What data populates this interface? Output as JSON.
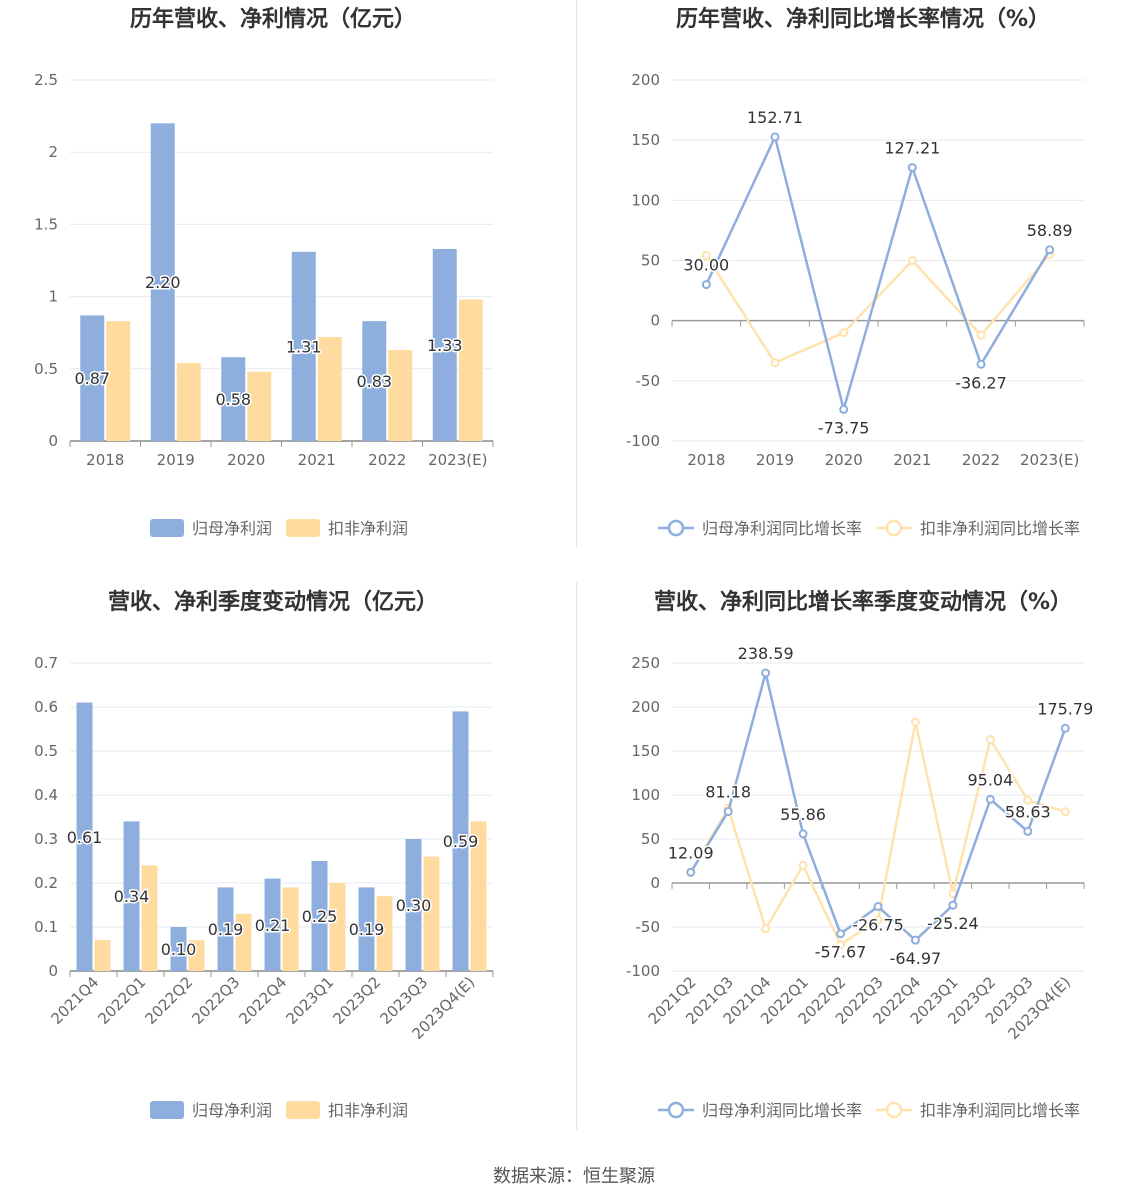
{
  "source_label": "数据来源：恒生聚源",
  "colors": {
    "blue": "#8eaedd",
    "orange": "#ffdba0",
    "blue_line": "#8eaedd",
    "orange_line": "#ffe2ad"
  },
  "chart_data": [
    {
      "type": "bar",
      "title": "历年营收、净利情况（亿元）",
      "categories": [
        "2018",
        "2019",
        "2020",
        "2021",
        "2022",
        "2023(E)"
      ],
      "ylim": [
        0,
        2.5
      ],
      "yticks": [
        "0",
        "0.5",
        "1",
        "1.5",
        "2",
        "2.5"
      ],
      "yticks_values": [
        0,
        0.5,
        1,
        1.5,
        2,
        2.5
      ],
      "series": [
        {
          "name": "归母净利润",
          "values": [
            0.87,
            2.2,
            0.58,
            1.31,
            0.83,
            1.33
          ],
          "labels": [
            "0.87",
            "2.20",
            "0.58",
            "1.31",
            "0.83",
            "1.33"
          ]
        },
        {
          "name": "扣非净利润",
          "values": [
            0.83,
            0.54,
            0.48,
            0.72,
            0.63,
            0.98
          ]
        }
      ],
      "legend": "bottom",
      "grid": true
    },
    {
      "type": "line",
      "title": "历年营收、净利同比增长率情况（%）",
      "categories": [
        "2018",
        "2019",
        "2020",
        "2021",
        "2022",
        "2023(E)"
      ],
      "ylim": [
        -100,
        200
      ],
      "yticks": [
        "-100",
        "-50",
        "0",
        "50",
        "100",
        "150",
        "200"
      ],
      "yticks_values": [
        -100,
        -50,
        0,
        50,
        100,
        150,
        200
      ],
      "series": [
        {
          "name": "归母净利润同比增长率",
          "values": [
            30.0,
            152.71,
            -73.75,
            127.21,
            -36.27,
            58.89
          ],
          "labels": [
            "30.00",
            "152.71",
            "-73.75",
            "127.21",
            "-36.27",
            "58.89"
          ]
        },
        {
          "name": "扣非净利润同比增长率",
          "values": [
            54,
            -35,
            -10,
            50,
            -12,
            55
          ]
        }
      ],
      "legend": "bottom",
      "grid": true
    },
    {
      "type": "bar",
      "title": "营收、净利季度变动情况（亿元）",
      "categories": [
        "2021Q4",
        "2022Q1",
        "2022Q2",
        "2022Q3",
        "2022Q4",
        "2023Q1",
        "2023Q2",
        "2023Q3",
        "2023Q4(E)"
      ],
      "ylim": [
        0,
        0.7
      ],
      "yticks": [
        "0",
        "0.1",
        "0.2",
        "0.3",
        "0.4",
        "0.5",
        "0.6",
        "0.7"
      ],
      "yticks_values": [
        0,
        0.1,
        0.2,
        0.3,
        0.4,
        0.5,
        0.6,
        0.7
      ],
      "series": [
        {
          "name": "归母净利润",
          "values": [
            0.61,
            0.34,
            0.1,
            0.19,
            0.21,
            0.25,
            0.19,
            0.3,
            0.59
          ],
          "labels": [
            "0.61",
            "0.34",
            "0.10",
            "0.19",
            "0.21",
            "0.25",
            "0.19",
            "0.30",
            "0.59"
          ]
        },
        {
          "name": "扣非净利润",
          "values": [
            0.07,
            0.24,
            0.07,
            0.13,
            0.19,
            0.2,
            0.17,
            0.26,
            0.34
          ]
        }
      ],
      "legend": "bottom",
      "grid": true
    },
    {
      "type": "line",
      "title": "营收、净利同比增长率季度变动情况（%）",
      "categories": [
        "2021Q2",
        "2021Q3",
        "2021Q4",
        "2022Q1",
        "2022Q2",
        "2022Q3",
        "2022Q4",
        "2023Q1",
        "2023Q2",
        "2023Q3",
        "2023Q4(E)"
      ],
      "ylim": [
        -100,
        250
      ],
      "yticks": [
        "-100",
        "-50",
        "0",
        "50",
        "100",
        "150",
        "200",
        "250"
      ],
      "yticks_values": [
        -100,
        -50,
        0,
        50,
        100,
        150,
        200,
        250
      ],
      "series": [
        {
          "name": "归母净利润同比增长率",
          "values": [
            12.09,
            81.18,
            238.59,
            55.86,
            -57.67,
            -26.75,
            -64.97,
            -25.24,
            95.04,
            58.63,
            175.79
          ],
          "labels": [
            "12.09",
            "81.18",
            "238.59",
            "55.86",
            "-57.67",
            "-26.75",
            "-64.97",
            "-25.24",
            "95.04",
            "58.63",
            "175.79"
          ]
        },
        {
          "name": "扣非净利润同比增长率",
          "values": [
            12,
            85,
            -52,
            20,
            -70,
            -42,
            183,
            -12,
            163,
            94,
            81
          ]
        }
      ],
      "legend": "bottom",
      "grid": true
    }
  ]
}
